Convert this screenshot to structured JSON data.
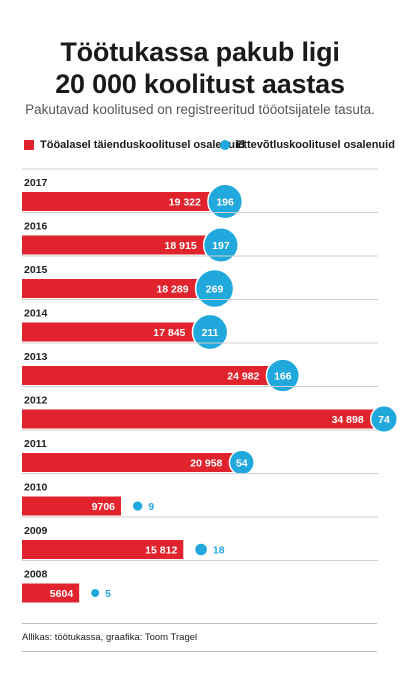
{
  "title": "Töötukassa pakub ligi\n20 000 koolitust aastas",
  "subtitle": "Pakutavad koolitused on registreeritud tööotsijatele tasuta.",
  "source": "Allikas: töötukassa, graafika: Toom Tragel",
  "colors": {
    "red": "#e0232c",
    "blue": "#21a9dd"
  },
  "chart_data": {
    "type": "bar",
    "categories": [
      "2017",
      "2016",
      "2015",
      "2014",
      "2013",
      "2012",
      "2011",
      "2010",
      "2009",
      "2008"
    ],
    "series": [
      {
        "name": "Tööalasel täienduskoolitusel osalenuid",
        "values": [
          19322,
          18915,
          18289,
          17845,
          24982,
          34898,
          20958,
          9706,
          15812,
          5604
        ],
        "labels": [
          "19 322",
          "18 915",
          "18 289",
          "17 845",
          "24 982",
          "34 898",
          "20 958",
          "9706",
          "15 812",
          "5604"
        ]
      },
      {
        "name": "Ettevõtluskoolitusel osalenuid",
        "values": [
          196,
          197,
          269,
          211,
          166,
          74,
          54,
          9,
          18,
          5
        ],
        "labels": [
          "196",
          "197",
          "269",
          "211",
          "166",
          "74",
          "54",
          "9",
          "18",
          "5"
        ]
      }
    ]
  }
}
